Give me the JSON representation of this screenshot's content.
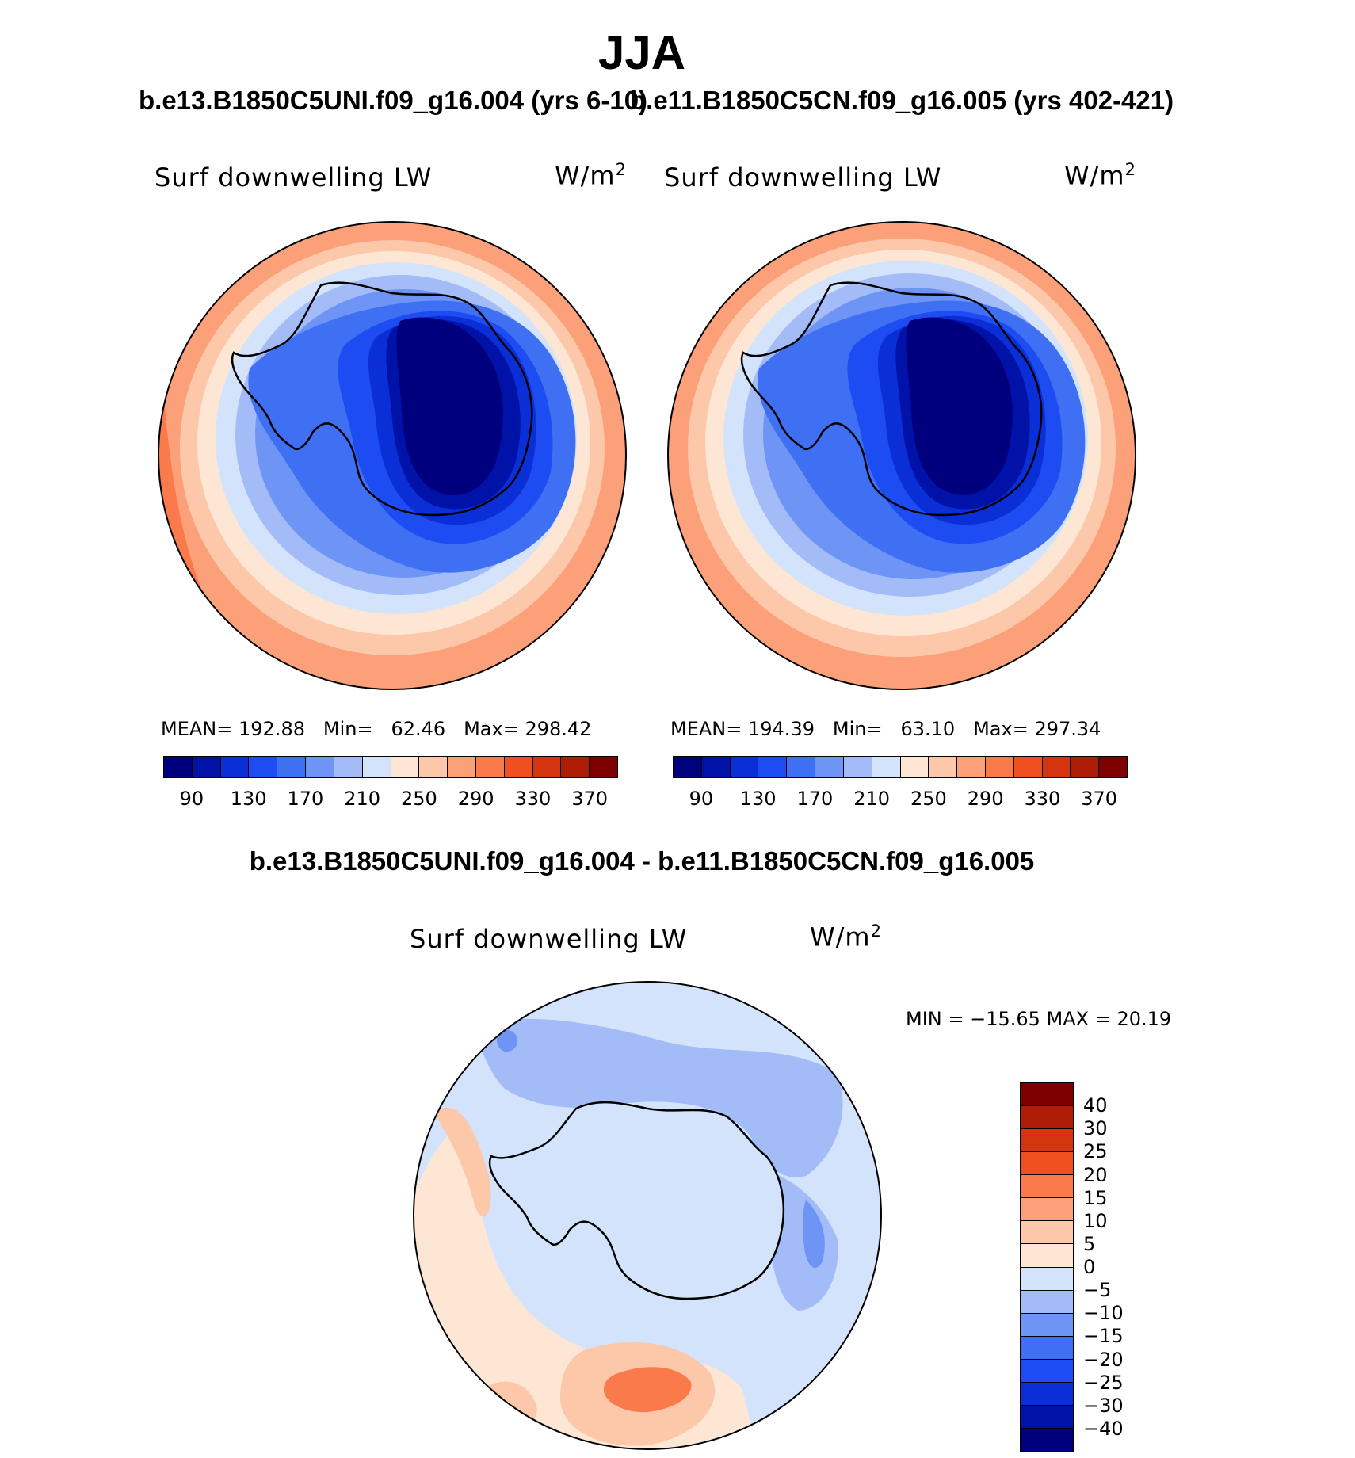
{
  "title": "JJA",
  "panels": {
    "left": {
      "case": "b.e13.B1850C5UNI.f09_g16.004 (yrs 6-10)",
      "variable": "Surf downwelling LW",
      "units_base": "W/m",
      "units_exp": "2",
      "mean_label": "MEAN=",
      "mean": "192.88",
      "min_label": "Min=",
      "min": "62.46",
      "max_label": "Max=",
      "max": "298.42"
    },
    "right": {
      "case": "b.e11.B1850C5CN.f09_g16.005 (yrs 402-421)",
      "variable": "Surf downwelling LW",
      "units_base": "W/m",
      "units_exp": "2",
      "mean_label": "MEAN=",
      "mean": "194.39",
      "min_label": "Min=",
      "min": "63.10",
      "max_label": "Max=",
      "max": "297.34"
    },
    "diff": {
      "title": "b.e13.B1850C5UNI.f09_g16.004 - b.e11.B1850C5CN.f09_g16.005",
      "variable": "Surf downwelling LW",
      "units_base": "W/m",
      "units_exp": "2",
      "minmax": "MIN = −15.65 MAX =   20.19"
    }
  },
  "chart_data": [
    {
      "type": "heatmap",
      "projection": "south-polar-stereographic",
      "title": "Surf downwelling LW",
      "case": "b.e13.B1850C5UNI.f09_g16.004 (yrs 6-10)",
      "units": "W/m2",
      "mean": 192.88,
      "min": 62.46,
      "max": 298.42,
      "levels": [
        90,
        110,
        130,
        150,
        170,
        190,
        210,
        230,
        250,
        270,
        290,
        310,
        330,
        350,
        370
      ],
      "tick_labels": [
        "90",
        "130",
        "170",
        "210",
        "250",
        "290",
        "330",
        "370"
      ],
      "colors": [
        "#00007f",
        "#0012a8",
        "#0a2fd6",
        "#1c4cf2",
        "#3f6ff2",
        "#6e94f5",
        "#a3bcf7",
        "#d2e3fb",
        "#fde7d4",
        "#fdc7aa",
        "#fca07a",
        "#fb7a4c",
        "#f0501f",
        "#d43510",
        "#b01d06",
        "#7f0000"
      ]
    },
    {
      "type": "heatmap",
      "projection": "south-polar-stereographic",
      "title": "Surf downwelling LW",
      "case": "b.e11.B1850C5CN.f09_g16.005 (yrs 402-421)",
      "units": "W/m2",
      "mean": 194.39,
      "min": 63.1,
      "max": 297.34,
      "levels": [
        90,
        110,
        130,
        150,
        170,
        190,
        210,
        230,
        250,
        270,
        290,
        310,
        330,
        350,
        370
      ],
      "tick_labels": [
        "90",
        "130",
        "170",
        "210",
        "250",
        "290",
        "330",
        "370"
      ],
      "colors": [
        "#00007f",
        "#0012a8",
        "#0a2fd6",
        "#1c4cf2",
        "#3f6ff2",
        "#6e94f5",
        "#a3bcf7",
        "#d2e3fb",
        "#fde7d4",
        "#fdc7aa",
        "#fca07a",
        "#fb7a4c",
        "#f0501f",
        "#d43510",
        "#b01d06",
        "#7f0000"
      ]
    },
    {
      "type": "heatmap",
      "projection": "south-polar-stereographic",
      "title": "Surf downwelling LW",
      "case": "b.e13.B1850C5UNI.f09_g16.004 - b.e11.B1850C5CN.f09_g16.005",
      "units": "W/m2",
      "min": -15.65,
      "max": 20.19,
      "levels": [
        -40,
        -30,
        -25,
        -20,
        -15,
        -10,
        -5,
        0,
        5,
        10,
        15,
        20,
        25,
        30,
        40
      ],
      "tick_labels": [
        "40",
        "30",
        "25",
        "20",
        "15",
        "10",
        "5",
        "0",
        "−5",
        "−10",
        "−15",
        "−20",
        "−25",
        "−30",
        "−40"
      ],
      "colors_top_to_bottom": [
        "#7f0000",
        "#b01d06",
        "#d43510",
        "#f0501f",
        "#fb7a4c",
        "#fca07a",
        "#fdc7aa",
        "#fde7d4",
        "#d2e3fb",
        "#a3bcf7",
        "#6e94f5",
        "#3f6ff2",
        "#1c4cf2",
        "#0a2fd6",
        "#0012a8",
        "#00007f"
      ]
    }
  ]
}
